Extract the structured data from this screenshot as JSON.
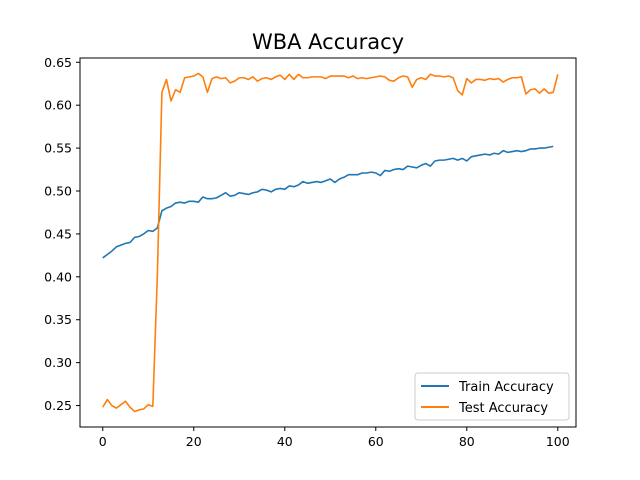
{
  "chart_data": {
    "type": "line",
    "title": "WBA Accuracy",
    "xlabel": "",
    "ylabel": "",
    "xlim": [
      -5,
      104
    ],
    "ylim": [
      0.225,
      0.655
    ],
    "x_ticks": [
      0,
      20,
      40,
      60,
      80,
      100
    ],
    "y_ticks": [
      0.25,
      0.3,
      0.35,
      0.4,
      0.45,
      0.5,
      0.55,
      0.6,
      0.65
    ],
    "grid": false,
    "legend_position": "lower-right",
    "series": [
      {
        "name": "Train Accuracy",
        "color": "#1f77b4",
        "values": [
          0.422,
          0.426,
          0.43,
          0.435,
          0.437,
          0.439,
          0.44,
          0.446,
          0.447,
          0.45,
          0.454,
          0.453,
          0.457,
          0.477,
          0.48,
          0.482,
          0.486,
          0.487,
          0.486,
          0.488,
          0.488,
          0.487,
          0.493,
          0.491,
          0.491,
          0.492,
          0.495,
          0.498,
          0.494,
          0.495,
          0.498,
          0.497,
          0.496,
          0.498,
          0.499,
          0.502,
          0.501,
          0.499,
          0.502,
          0.503,
          0.502,
          0.506,
          0.505,
          0.507,
          0.511,
          0.509,
          0.51,
          0.511,
          0.51,
          0.512,
          0.514,
          0.51,
          0.514,
          0.516,
          0.519,
          0.519,
          0.519,
          0.521,
          0.521,
          0.522,
          0.521,
          0.518,
          0.524,
          0.523,
          0.525,
          0.526,
          0.525,
          0.529,
          0.528,
          0.527,
          0.53,
          0.532,
          0.529,
          0.535,
          0.536,
          0.536,
          0.537,
          0.538,
          0.536,
          0.538,
          0.535,
          0.54,
          0.541,
          0.542,
          0.543,
          0.542,
          0.544,
          0.543,
          0.547,
          0.545,
          0.546,
          0.547,
          0.546,
          0.547,
          0.549,
          0.549,
          0.55,
          0.55,
          0.551,
          0.552
        ]
      },
      {
        "name": "Test Accuracy",
        "color": "#ff7f0e",
        "values": [
          0.248,
          0.257,
          0.25,
          0.247,
          0.251,
          0.255,
          0.248,
          0.243,
          0.245,
          0.246,
          0.251,
          0.249,
          0.402,
          0.615,
          0.63,
          0.605,
          0.618,
          0.615,
          0.632,
          0.633,
          0.634,
          0.637,
          0.633,
          0.615,
          0.631,
          0.633,
          0.631,
          0.632,
          0.626,
          0.628,
          0.632,
          0.632,
          0.63,
          0.633,
          0.628,
          0.631,
          0.632,
          0.63,
          0.633,
          0.635,
          0.63,
          0.636,
          0.63,
          0.636,
          0.632,
          0.632,
          0.633,
          0.633,
          0.633,
          0.631,
          0.634,
          0.634,
          0.634,
          0.634,
          0.632,
          0.634,
          0.631,
          0.632,
          0.631,
          0.632,
          0.633,
          0.634,
          0.633,
          0.629,
          0.628,
          0.632,
          0.634,
          0.633,
          0.621,
          0.63,
          0.632,
          0.63,
          0.636,
          0.634,
          0.634,
          0.633,
          0.634,
          0.632,
          0.617,
          0.612,
          0.631,
          0.626,
          0.63,
          0.63,
          0.629,
          0.631,
          0.63,
          0.631,
          0.627,
          0.63,
          0.632,
          0.632,
          0.633,
          0.613,
          0.618,
          0.619,
          0.614,
          0.619,
          0.614,
          0.615,
          0.636
        ]
      }
    ]
  }
}
